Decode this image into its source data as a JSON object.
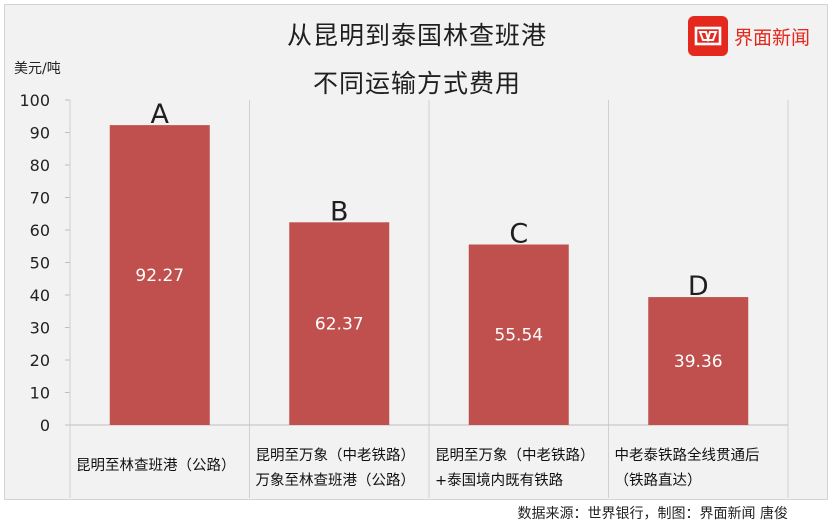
{
  "header": {
    "title_line1": "从昆明到泰国林查班港",
    "title_line2": "不同运输方式费用",
    "unit": "美元/吨"
  },
  "logo": {
    "text": "界面新闻",
    "color": "#e5281e"
  },
  "source": "数据来源：世界银行，制图：界面新闻 唐俊",
  "chart_data": {
    "type": "bar",
    "title": "从昆明到泰国林查班港 不同运输方式费用",
    "ylabel": "美元/吨",
    "ylim": [
      0,
      100
    ],
    "yticks": [
      0,
      10,
      20,
      30,
      40,
      50,
      60,
      70,
      80,
      90,
      100
    ],
    "grid": "vertical category separators",
    "bar_color": "#c0504d",
    "categories": [
      [
        "昆明至林查班港（公路）"
      ],
      [
        "昆明至万象（中老铁路）",
        "万象至林查班港（公路）"
      ],
      [
        "昆明至万象（中老铁路）",
        "+泰国境内既有铁路"
      ],
      [
        "中老泰铁路全线贯通后",
        "（铁路直达）"
      ]
    ],
    "letters": [
      "A",
      "B",
      "C",
      "D"
    ],
    "values": [
      92.27,
      62.37,
      55.54,
      39.36
    ]
  }
}
